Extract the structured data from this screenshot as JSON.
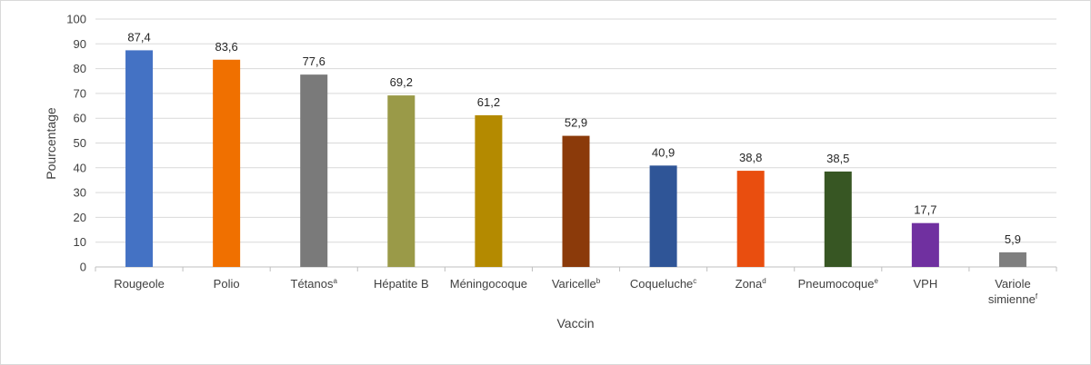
{
  "chart_data": {
    "type": "bar",
    "xlabel": "Vaccin",
    "ylabel": "Pourcentage",
    "ylim": [
      0,
      100
    ],
    "ytick_step": 10,
    "grid": true,
    "categories": [
      {
        "label": "Rougeole",
        "sup": ""
      },
      {
        "label": "Polio",
        "sup": ""
      },
      {
        "label": "Tétanos",
        "sup": "a"
      },
      {
        "label": "Hépatite B",
        "sup": ""
      },
      {
        "label": "Méningocoque",
        "sup": ""
      },
      {
        "label": "Varicelle",
        "sup": "b"
      },
      {
        "label": "Coqueluche",
        "sup": "c"
      },
      {
        "label": "Zona",
        "sup": "d"
      },
      {
        "label": "Pneumocoque",
        "sup": "e"
      },
      {
        "label": "VPH",
        "sup": ""
      },
      {
        "label": "Variole simienne",
        "sup": "f"
      }
    ],
    "values": [
      87.4,
      83.6,
      77.6,
      69.2,
      61.2,
      52.9,
      40.9,
      38.8,
      38.5,
      17.7,
      5.9
    ],
    "data_labels": [
      "87,4",
      "83,6",
      "77,6",
      "69,2",
      "61,2",
      "52,9",
      "40,9",
      "38,8",
      "38,5",
      "17,7",
      "5,9"
    ],
    "colors": [
      "#4472C4",
      "#F07000",
      "#7A7A7A",
      "#9A9A48",
      "#B48A00",
      "#8B3A0A",
      "#2F5597",
      "#E94E0F",
      "#375623",
      "#7030A0",
      "#7F7F7F"
    ]
  }
}
